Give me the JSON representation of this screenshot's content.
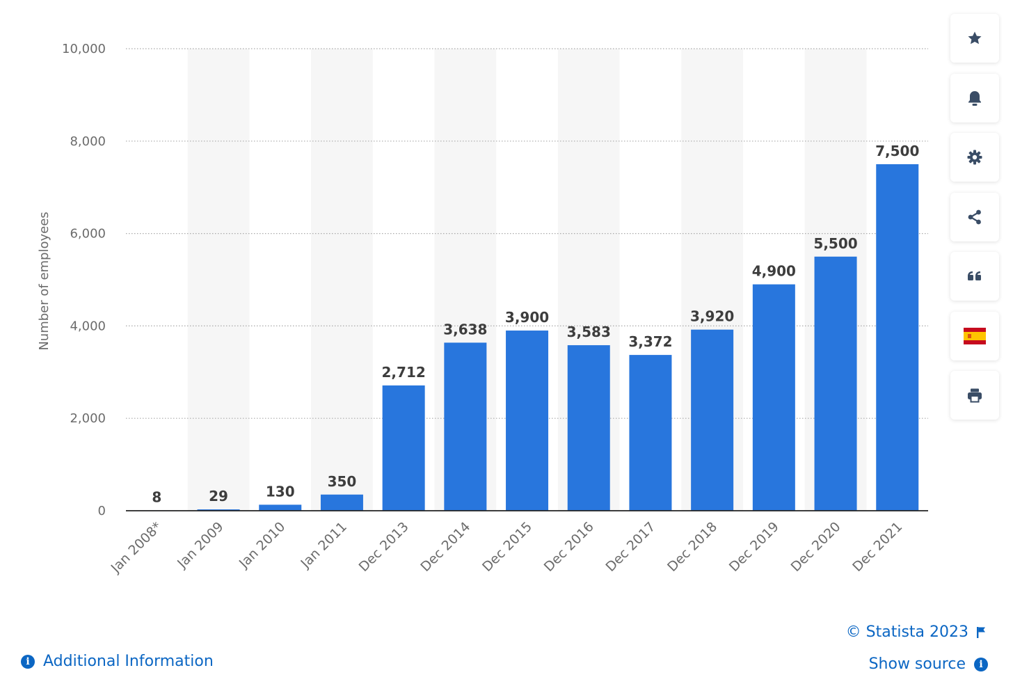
{
  "chart_data": {
    "type": "bar",
    "categories": [
      "Jan 2008*",
      "Jan 2009",
      "Jan 2010",
      "Jan 2011",
      "Dec 2013",
      "Dec 2014",
      "Dec 2015",
      "Dec 2016",
      "Dec 2017",
      "Dec 2018",
      "Dec 2019",
      "Dec 2020",
      "Dec 2021"
    ],
    "values": [
      8,
      29,
      130,
      350,
      2712,
      3638,
      3900,
      3583,
      3372,
      3920,
      4900,
      5500,
      7500
    ],
    "data_labels": [
      "8",
      "29",
      "130",
      "350",
      "2,712",
      "3,638",
      "3,900",
      "3,583",
      "3,372",
      "3,920",
      "4,900",
      "5,500",
      "7,500"
    ],
    "title": "",
    "xlabel": "",
    "ylabel": "Number of employees",
    "ylim": [
      0,
      10000
    ],
    "yticks": [
      0,
      2000,
      4000,
      6000,
      8000,
      10000
    ],
    "ytick_labels": [
      "0",
      "2,000",
      "4,000",
      "6,000",
      "8,000",
      "10,000"
    ],
    "grid": true,
    "legend": "none",
    "colors": {
      "bar": "#2876dd",
      "alt_band": "#f6f6f6",
      "grid": "#a9a9a9",
      "axis": "#222222",
      "tick_label": "#6b6b6b",
      "data_label": "#3d3d3d"
    }
  },
  "toolbar": {
    "buttons": [
      {
        "icon": "star-icon",
        "name": "favorite-button"
      },
      {
        "icon": "bell-icon",
        "name": "notification-button"
      },
      {
        "icon": "gear-icon",
        "name": "settings-button"
      },
      {
        "icon": "share-icon",
        "name": "share-button"
      },
      {
        "icon": "quote-icon",
        "name": "cite-button"
      },
      {
        "icon": "spain-flag-icon",
        "name": "language-button"
      },
      {
        "icon": "printer-icon",
        "name": "print-button"
      }
    ],
    "icon_color": "#3a4d66"
  },
  "footer": {
    "copyright": "© Statista 2023",
    "show_source": "Show source",
    "additional_info": "Additional Information",
    "link_color": "#0b66c3"
  }
}
